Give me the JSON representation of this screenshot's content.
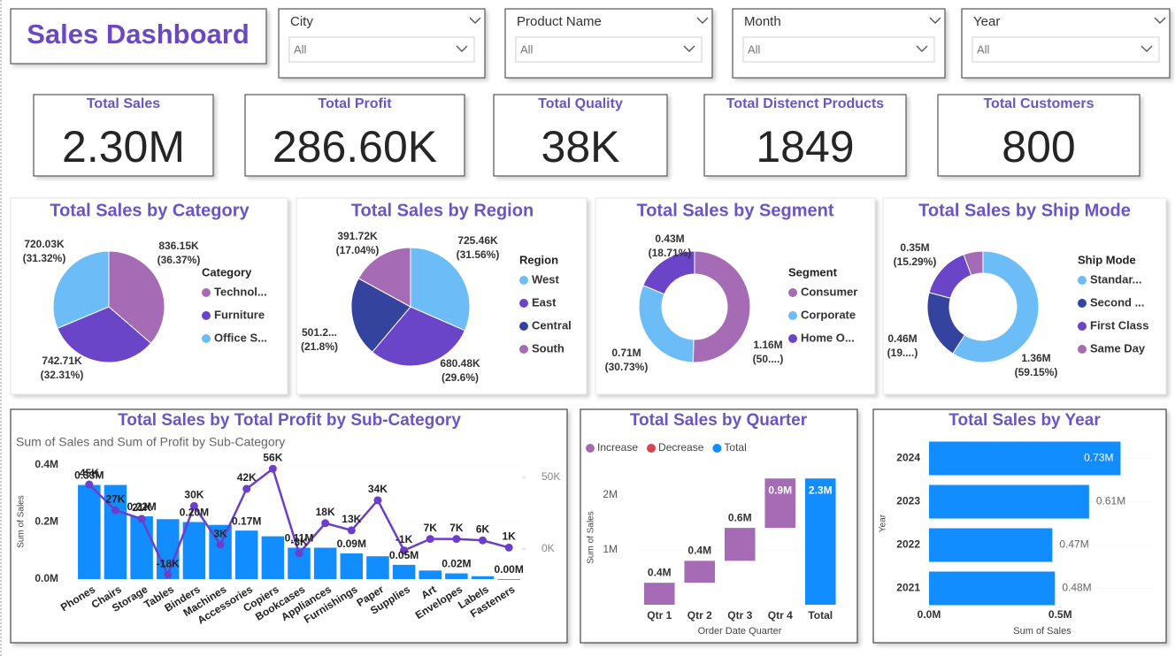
{
  "header": {
    "title": "Sales Dashboard"
  },
  "filters": [
    {
      "label": "City",
      "value": "All"
    },
    {
      "label": "Product Name",
      "value": "All"
    },
    {
      "label": "Month",
      "value": "All"
    },
    {
      "label": "Year",
      "value": "All"
    }
  ],
  "kpis": [
    {
      "label": "Total Sales",
      "value": "2.30M"
    },
    {
      "label": "Total Profit",
      "value": "286.60K"
    },
    {
      "label": "Total Quality",
      "value": "38K"
    },
    {
      "label": "Total Distenct Products",
      "value": "1849"
    },
    {
      "label": "Total Customers",
      "value": "800"
    }
  ],
  "chart_data": [
    {
      "type": "pie",
      "title": "Total Sales by Category",
      "legend_title": "Category",
      "categories": [
        "Technol...",
        "Furniture",
        "Office S..."
      ],
      "values": [
        836.15,
        742.71,
        720.03
      ],
      "value_labels": [
        "836.15K",
        "742.71K",
        "720.03K"
      ],
      "percent_labels": [
        "(36.37%)",
        "(32.31%)",
        "(31.32%)"
      ],
      "colors": [
        "#a66bb5",
        "#6b45c7",
        "#6cbcf7"
      ]
    },
    {
      "type": "pie",
      "title": "Total Sales by Region",
      "legend_title": "Region",
      "categories": [
        "West",
        "East",
        "Central",
        "South"
      ],
      "values": [
        725.46,
        680.48,
        501.2,
        391.72
      ],
      "value_labels": [
        "725.46K",
        "680.48K",
        "501.2...",
        "391.72K"
      ],
      "percent_labels": [
        "(31.56%)",
        "(29.6%)",
        "(21.8%)",
        "(17.04%)"
      ],
      "colors": [
        "#6cbcf7",
        "#6b45c7",
        "#34449e",
        "#a66bb5"
      ]
    },
    {
      "type": "donut",
      "title": "Total Sales by Segment",
      "legend_title": "Segment",
      "categories": [
        "Consumer",
        "Corporate",
        "Home O..."
      ],
      "values": [
        1.16,
        0.71,
        0.43
      ],
      "value_labels": [
        "1.16M",
        "0.71M",
        "0.43M"
      ],
      "percent_labels": [
        "(50....)",
        "(30.73%)",
        "(18.71%)"
      ],
      "colors": [
        "#a66bb5",
        "#6cbcf7",
        "#6b45c7"
      ]
    },
    {
      "type": "donut",
      "title": "Total Sales by Ship Mode",
      "legend_title": "Ship Mode",
      "categories": [
        "Standar...",
        "Second ...",
        "First Class",
        "Same Day"
      ],
      "values": [
        1.36,
        0.46,
        0.35,
        0.13
      ],
      "value_labels": [
        "1.36M",
        "0.46M",
        "0.35M",
        null
      ],
      "percent_labels": [
        "(59.15%)",
        "(19....)",
        "(15.29%)",
        null
      ],
      "colors": [
        "#6cbcf7",
        "#34449e",
        "#6b45c7",
        "#a66bb5"
      ]
    },
    {
      "type": "combo",
      "title": "Total Sales by Total Profit by Sub-Category",
      "subtitle": "Sum of Sales and Sum of Profit by Sub-Category",
      "y_label": "Sum of Sales",
      "categories": [
        "Phones",
        "Chairs",
        "Storage",
        "Tables",
        "Binders",
        "Machines",
        "Accessories",
        "Copiers",
        "Bookcases",
        "Appliances",
        "Furnishings",
        "Paper",
        "Supplies",
        "Art",
        "Envelopes",
        "Labels",
        "Fasteners"
      ],
      "series": [
        {
          "type": "bar",
          "color": "#118dff",
          "values": [
            0.33,
            0.33,
            0.22,
            0.21,
            0.2,
            0.19,
            0.17,
            0.15,
            0.11,
            0.11,
            0.09,
            0.08,
            0.05,
            0.03,
            0.02,
            0.01,
            0
          ],
          "value_labels": [
            "0.33M",
            null,
            "0.22M",
            null,
            "0.20M",
            null,
            "0.17M",
            null,
            "0.11M",
            null,
            "0.09M",
            null,
            "0.05M",
            null,
            "0.02M",
            null,
            "0.00M"
          ]
        },
        {
          "type": "line",
          "axis": "y2",
          "color": "#6b3fc9",
          "values": [
            45,
            27,
            21,
            -18,
            30,
            3,
            42,
            56,
            -3,
            18,
            13,
            34,
            -1,
            7,
            7,
            6,
            1
          ],
          "value_labels": [
            "45K",
            "27K",
            "21K",
            "-18K",
            "30K",
            "3K",
            "42K",
            "56K",
            "-3K",
            "18K",
            "13K",
            "34K",
            "-1K",
            "7K",
            "7K",
            "6K",
            "1K"
          ]
        }
      ],
      "ylim": [
        0,
        0.42
      ],
      "yticks": [
        {
          "value": 0,
          "label": "0.0M"
        },
        {
          "value": 0.2,
          "label": "0.2M"
        },
        {
          "value": 0.4,
          "label": "0.4M"
        }
      ],
      "y2lim": [
        -21,
        62.6
      ],
      "y2ticks": [
        {
          "value": 0,
          "label": "0K"
        },
        {
          "value": 50,
          "label": "50K"
        }
      ]
    },
    {
      "type": "waterfall",
      "title": "Total Sales by Quarter",
      "x_label": "Order Date Quarter",
      "y_label": "Sum of Sales",
      "categories": [
        "Qtr 1",
        "Qtr 2",
        "Qtr 3",
        "Qtr 4",
        "Total"
      ],
      "series": [
        {
          "name": "Increase",
          "color": "#a66bb5",
          "values": [
            0.4,
            0.4,
            0.6,
            0.9,
            null
          ],
          "value_labels": [
            "0.4M",
            "0.4M",
            "0.6M",
            "0.9M",
            null
          ]
        },
        {
          "name": "Decrease",
          "color": "#d64550",
          "values": [
            null,
            null,
            null,
            null,
            null
          ]
        },
        {
          "name": "Total",
          "color": "#118dff",
          "values": [
            null,
            null,
            null,
            null,
            2.3
          ],
          "value_labels": [
            null,
            null,
            null,
            null,
            "2.3M"
          ]
        }
      ],
      "ylim": [
        0,
        2.4
      ],
      "yticks": [
        {
          "value": 1,
          "label": "1M"
        },
        {
          "value": 2,
          "label": "2M"
        }
      ]
    },
    {
      "type": "barh",
      "title": "Total Sales by Year",
      "x_label": "Sum of Sales",
      "y_label": "Year",
      "categories": [
        "2024",
        "2023",
        "2022",
        "2021"
      ],
      "values": [
        0.73,
        0.61,
        0.47,
        0.48
      ],
      "value_labels": [
        "0.73M",
        "0.61M",
        "0.47M",
        "0.48M"
      ],
      "color": "#118dff",
      "xlim": [
        0,
        0.86
      ],
      "xticks": [
        {
          "value": 0,
          "label": "0.0M"
        },
        {
          "value": 0.5,
          "label": "0.5M"
        }
      ]
    }
  ]
}
